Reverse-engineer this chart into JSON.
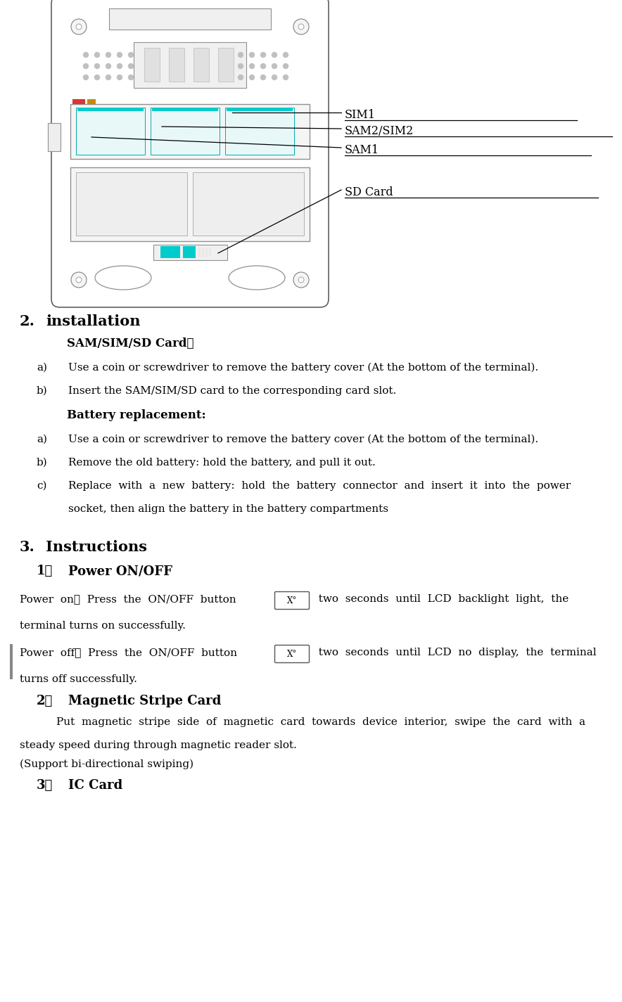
{
  "bg_color": "#ffffff",
  "text_color": "#000000",
  "page_width": 8.84,
  "page_height": 14.25,
  "ff": "DejaVu Serif",
  "body_fs": 11.0,
  "bold_fs": 12.0,
  "heading_fs": 15.0,
  "sub_fs": 13.0,
  "diagram_labels": [
    "SIM1",
    "SAM2/SIM2",
    "SAM1",
    "SD Card"
  ],
  "section2_heading": "2.",
  "section2_title": "installation",
  "sam_card_subhead": "SAM/SIM/SD Card：",
  "battery_subhead": "Battery replacement:",
  "section3_heading": "3.",
  "section3_title": "Instructions",
  "power_subhead": "1）",
  "power_title": "Power ON/OFF",
  "mag_subhead": "2）",
  "mag_title": "Magnetic Stripe Card",
  "ic_subhead": "3）",
  "ic_title": "IC Card"
}
